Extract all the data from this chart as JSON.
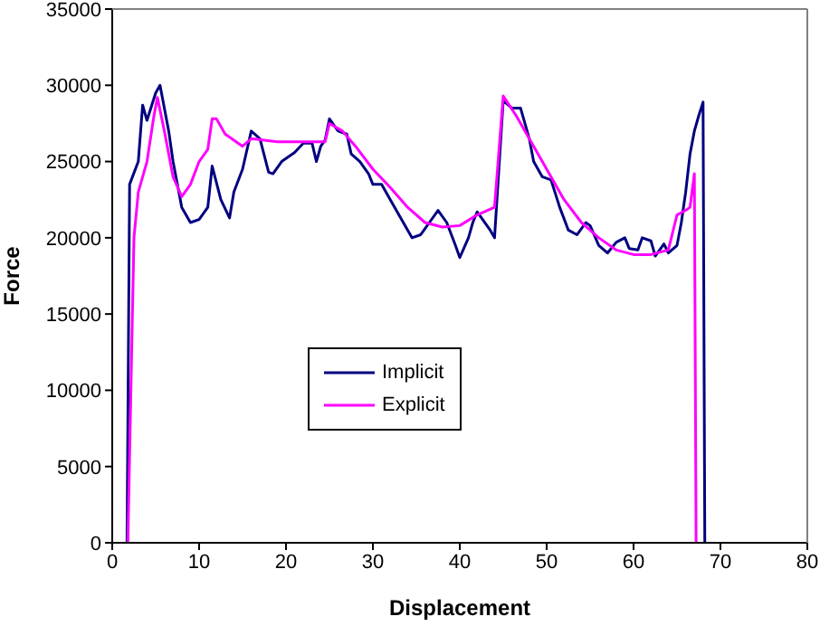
{
  "chart_data": {
    "type": "line",
    "xlabel": "Displacement",
    "ylabel": "Force",
    "xlim": [
      0,
      80
    ],
    "xticks": [
      0,
      10,
      20,
      30,
      40,
      50,
      60,
      70,
      80
    ],
    "ylim": [
      0,
      35000
    ],
    "yticks": [
      0,
      5000,
      10000,
      15000,
      20000,
      25000,
      30000,
      35000
    ],
    "grid": false,
    "legend": "left",
    "marker": "none",
    "line_style": "solid",
    "series": [
      {
        "name": "Implicit",
        "color": "#000080",
        "x": [
          1.7,
          2,
          3,
          3.5,
          4,
          5,
          5.5,
          6.5,
          7,
          8,
          9,
          10,
          11,
          11.5,
          12.5,
          13.5,
          14,
          15,
          16,
          17,
          18,
          18.5,
          19.5,
          21,
          22,
          23,
          23.5,
          24,
          24.5,
          25,
          26,
          27,
          27.5,
          28.5,
          29.5,
          30,
          31,
          32,
          33.5,
          34.5,
          35.5,
          36.5,
          37.5,
          38.5,
          39.5,
          40,
          41,
          41.5,
          42,
          43.5,
          44,
          45,
          46,
          47,
          48,
          48.5,
          49.5,
          50.5,
          51.5,
          52.5,
          53.5,
          54.5,
          55,
          56,
          57,
          58,
          59,
          59.5,
          60.5,
          61,
          62,
          62.5,
          63.5,
          64,
          65,
          65.5,
          66,
          66.5,
          67,
          67.5,
          68,
          68.2
        ],
        "values": [
          0,
          23500,
          25000,
          28700,
          27700,
          29500,
          30000,
          27000,
          25000,
          22000,
          21000,
          21200,
          22000,
          24700,
          22500,
          21300,
          23000,
          24500,
          27000,
          26500,
          24300,
          24200,
          25000,
          25600,
          26200,
          26200,
          25000,
          26000,
          26400,
          27800,
          27000,
          26800,
          25500,
          25000,
          24200,
          23500,
          23500,
          22500,
          21000,
          20000,
          20200,
          21000,
          21800,
          21000,
          19500,
          18700,
          20000,
          21000,
          21700,
          20500,
          20000,
          29000,
          28500,
          28500,
          26500,
          25000,
          24000,
          23800,
          22000,
          20500,
          20200,
          21000,
          20800,
          19500,
          19000,
          19700,
          20000,
          19300,
          19200,
          20000,
          19800,
          18800,
          19600,
          19000,
          19500,
          21000,
          23000,
          25500,
          27000,
          28000,
          28900,
          0
        ]
      },
      {
        "name": "Explicit",
        "color": "#ff00ff",
        "x": [
          1.8,
          2.5,
          3,
          4,
          4.8,
          5.2,
          6,
          7,
          8,
          9,
          10,
          11,
          11.5,
          12,
          13,
          15,
          16,
          19,
          23,
          24.5,
          25,
          26.5,
          28,
          30,
          32,
          34,
          36,
          38,
          40,
          42,
          44,
          45,
          46.5,
          48,
          50,
          52,
          54,
          56,
          58,
          60,
          62,
          64,
          65,
          66,
          66.5,
          67,
          67.2
        ],
        "values": [
          0,
          20000,
          23000,
          25000,
          28000,
          29200,
          27000,
          24000,
          22700,
          23500,
          25000,
          25800,
          27800,
          27800,
          26800,
          26000,
          26500,
          26300,
          26300,
          26300,
          27500,
          27000,
          26000,
          24500,
          23300,
          22000,
          21000,
          20700,
          20800,
          21500,
          22000,
          29300,
          28000,
          26500,
          24500,
          22500,
          21000,
          20000,
          19200,
          18900,
          18900,
          19200,
          21500,
          21800,
          22000,
          24200,
          0
        ]
      }
    ]
  }
}
